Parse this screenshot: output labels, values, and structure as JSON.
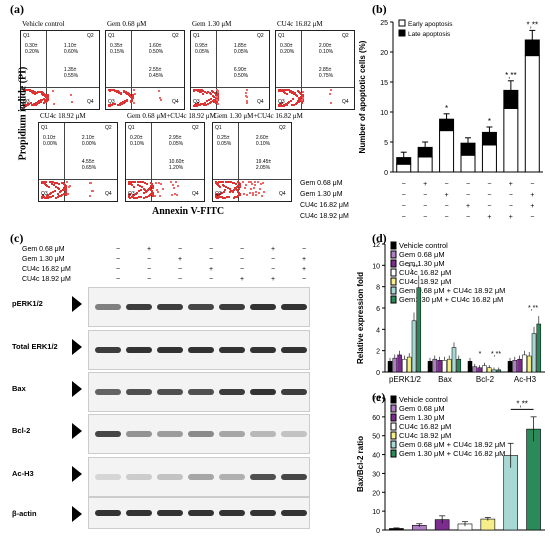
{
  "panel_labels": {
    "a": "(a)",
    "b": "(b)",
    "c": "(c)",
    "d": "(d)",
    "e": "(e)"
  },
  "flow": {
    "y_axis": "Propidium iodide (PI)",
    "x_axis": "Annexin V-FITC",
    "plots": [
      {
        "title": "Vehicle control",
        "q1": "0.30±\n0.20%",
        "q2": "1.10±\n0.60%",
        "q4": "1.35±\n0.55%"
      },
      {
        "title": "Gem 0.68 μM",
        "q1": "0.35±\n0.15%",
        "q2": "1.60±\n0.50%",
        "q4": "2.55±\n0.45%"
      },
      {
        "title": "Gem 1.30 μM",
        "q1": "0.95±\n0.05%",
        "q2": "1.85±\n0.05%",
        "q4": "6.90±\n0.50%"
      },
      {
        "title": "CU4c 16.82 μM",
        "q1": "0.30±\n0.20%",
        "q2": "2.00±\n0.10%",
        "q4": "2.85±\n0.75%"
      },
      {
        "title": "CU4c 18.92 μM",
        "q1": "0.10±\n0.00%",
        "q2": "2.10±\n0.00%",
        "q4": "4.55±\n0.65%"
      },
      {
        "title": "Gem 0.68 μM+CU4c 18.92 μM",
        "q1": "0.20±\n0.10%",
        "q2": "2.95±\n0.05%",
        "q4": "10.60±\n1.20%"
      },
      {
        "title": "Gem 1.30 μM+CU4c 16.82 μM",
        "q1": "0.25±\n0.05%",
        "q2": "2.60±\n0.10%",
        "q4": "19.45±\n2.05%"
      }
    ]
  },
  "treat_labels": [
    "Gem 0.68 μM",
    "Gem 1.30 μM",
    "CU4c 16.82 μM",
    "CU4c 18.92 μM"
  ],
  "treat_matrix": [
    [
      "−",
      "+",
      "−",
      "−",
      "−",
      "+",
      "−"
    ],
    [
      "−",
      "−",
      "+",
      "−",
      "−",
      "−",
      "+"
    ],
    [
      "−",
      "−",
      "−",
      "+",
      "−",
      "−",
      "+"
    ],
    [
      "−",
      "−",
      "−",
      "−",
      "+",
      "+",
      "−"
    ]
  ],
  "wb": {
    "treat_labels": [
      "Gem 0.68 μM",
      "Gem 1.30 μM",
      "CU4c 16.82 μM",
      "CU4c 18.92 μM"
    ],
    "matrix": [
      [
        "−",
        "+",
        "−",
        "−",
        "−",
        "+",
        "−"
      ],
      [
        "−",
        "−",
        "+",
        "−",
        "−",
        "−",
        "+"
      ],
      [
        "−",
        "−",
        "−",
        "+",
        "−",
        "−",
        "+"
      ],
      [
        "−",
        "−",
        "−",
        "−",
        "+",
        "+",
        "−"
      ]
    ],
    "rows": [
      "pERK1/2",
      "Total ERK1/2",
      "Bax",
      "Bcl-2",
      "Ac-H3",
      "β-actin"
    ]
  },
  "legend_d": [
    "Vehicle control",
    "Gem 0.68 μM",
    "Gem 1.30 μM",
    "CU4c 16.82 μM",
    "CU4c 18.92 μM",
    "Gem 0.68 μM + CU4c 18.92 μM",
    "Gem1.30 μM + CU4c 16.82 μM"
  ],
  "legend_e": [
    "Vehicle control",
    "Gem 0.68 μM",
    "Gem 1.30 μM",
    "CU4c 16.82 μM",
    "CU4c 18.92 μM",
    "Gem 0.68 μM + CU4c 18.92 μM",
    "Gem 1.30 μM + CU4c 16.82 μM"
  ],
  "colors": [
    "#000000",
    "#b07cc6",
    "#7b2d8e",
    "#ffffff",
    "#f5ee8a",
    "#a8d8d4",
    "#2a8a5a"
  ],
  "chart_data": [
    {
      "type": "bar",
      "ylabel": "Number of apoptotic cells (%)",
      "ylim": [
        0,
        25
      ],
      "yticks": [
        "0",
        "5",
        "10",
        "15",
        "20",
        "25"
      ],
      "legend": [
        "Early apoptosis",
        "Late apoptosis"
      ],
      "series": [
        {
          "name": "Early apoptosis",
          "values": [
            1.3,
            2.5,
            6.9,
            2.8,
            4.5,
            10.6,
            19.4
          ]
        },
        {
          "name": "Late apoptosis",
          "values": [
            1.1,
            1.6,
            1.9,
            2.0,
            2.1,
            3.0,
            2.6
          ]
        }
      ],
      "annotations": [
        "",
        "",
        "*",
        "",
        "*",
        "*,**",
        "*,**"
      ]
    },
    {
      "type": "bar",
      "ylabel": "Relative expression fold",
      "ylim": [
        0,
        12
      ],
      "yticks": [
        "0",
        "2",
        "4",
        "6",
        "8",
        "10",
        "12"
      ],
      "categories": [
        "pERK1/2",
        "Bax",
        "Bcl-2",
        "Ac-H3"
      ],
      "values": [
        [
          1.0,
          1.3,
          1.6,
          1.2,
          1.4,
          4.8,
          7.9
        ],
        [
          1.0,
          1.2,
          1.1,
          1.1,
          1.2,
          2.3,
          1.2
        ],
        [
          1.0,
          0.5,
          0.4,
          0.6,
          0.4,
          0.2,
          0.2
        ],
        [
          1.0,
          1.1,
          1.2,
          1.6,
          1.5,
          3.6,
          4.5
        ]
      ],
      "annotations": [
        [
          "*,**"
        ],
        [
          ""
        ],
        [
          "*",
          "*,**"
        ],
        [
          "*,**"
        ]
      ]
    },
    {
      "type": "bar",
      "ylabel": "Bax/Bcl-2 ratio",
      "ylim": [
        0,
        70
      ],
      "yticks": [
        "0",
        "10",
        "20",
        "30",
        "40",
        "50",
        "60",
        "70"
      ],
      "values": [
        0.8,
        2.5,
        5.5,
        3.2,
        5.8,
        39.5,
        53.5
      ],
      "errors": [
        0.3,
        0.8,
        2.0,
        1.2,
        0.8,
        6.5,
        6.5
      ],
      "annotations": [
        "*,**"
      ]
    }
  ]
}
